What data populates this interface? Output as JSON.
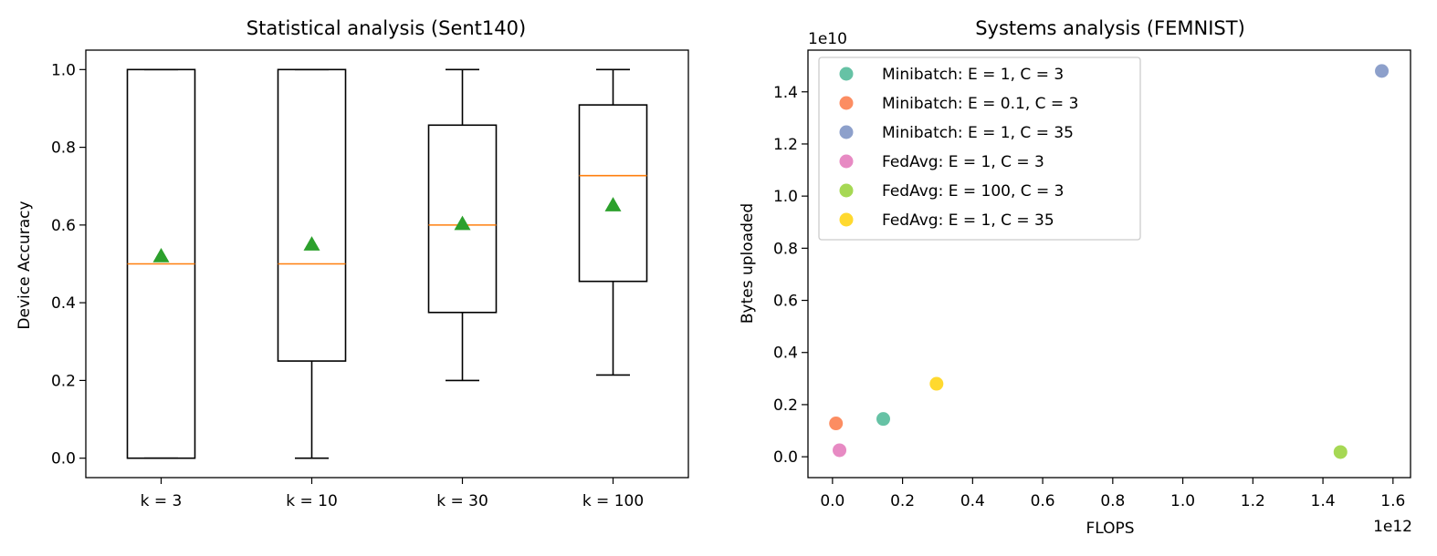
{
  "chart_data": [
    {
      "type": "box",
      "title": "Statistical analysis (Sent140)",
      "xlabel": "",
      "ylabel": "Device Accuracy",
      "ylim": [
        -0.05,
        1.05
      ],
      "yticks": [
        0.0,
        0.2,
        0.4,
        0.6,
        0.8,
        1.0
      ],
      "ytick_labels": [
        "0.0",
        "0.2",
        "0.4",
        "0.6",
        "0.8",
        "1.0"
      ],
      "categories": [
        "k = 3",
        "k = 10",
        "k = 30",
        "k = 100"
      ],
      "boxes": [
        {
          "whisker_low": 0.0,
          "q1": 0.0,
          "median": 0.5,
          "q3": 1.0,
          "whisker_high": 1.0,
          "mean": 0.52
        },
        {
          "whisker_low": 0.0,
          "q1": 0.25,
          "median": 0.5,
          "q3": 1.0,
          "whisker_high": 1.0,
          "mean": 0.55
        },
        {
          "whisker_low": 0.2,
          "q1": 0.375,
          "median": 0.6,
          "q3": 0.857,
          "whisker_high": 1.0,
          "mean": 0.603
        },
        {
          "whisker_low": 0.214,
          "q1": 0.455,
          "median": 0.727,
          "q3": 0.909,
          "whisker_high": 1.0,
          "mean": 0.651
        }
      ],
      "colors": {
        "box": "#000000",
        "median": "#ff7f0e",
        "mean": "#2ca02c"
      },
      "grid": false
    },
    {
      "type": "scatter",
      "title": "Systems analysis (FEMNIST)",
      "xlabel": "FLOPS",
      "ylabel": "Bytes uploaded",
      "x_scale_label": "1e12",
      "y_scale_label": "1e10",
      "xlim": [
        -0.07,
        1.65
      ],
      "ylim": [
        -0.08,
        1.56
      ],
      "xticks": [
        0.0,
        0.2,
        0.4,
        0.6,
        0.8,
        1.0,
        1.2,
        1.4,
        1.6
      ],
      "xtick_labels": [
        "0.0",
        "0.2",
        "0.4",
        "0.6",
        "0.8",
        "1.0",
        "1.2",
        "1.4",
        "1.6"
      ],
      "yticks": [
        0.0,
        0.2,
        0.4,
        0.6,
        0.8,
        1.0,
        1.2,
        1.4
      ],
      "ytick_labels": [
        "0.0",
        "0.2",
        "0.4",
        "0.6",
        "0.8",
        "1.0",
        "1.2",
        "1.4"
      ],
      "legend_position": "top-left",
      "series": [
        {
          "name": "Minibatch: E = 1, C = 3",
          "color": "#66c2a5",
          "x": 0.145,
          "y": 0.145
        },
        {
          "name": "Minibatch: E = 0.1, C = 3",
          "color": "#fc8d62",
          "x": 0.01,
          "y": 0.128
        },
        {
          "name": "Minibatch: E = 1, C = 35",
          "color": "#8da0cb",
          "x": 1.568,
          "y": 1.48
        },
        {
          "name": "FedAvg: E = 1, C = 3",
          "color": "#e78ac3",
          "x": 0.02,
          "y": 0.025
        },
        {
          "name": "FedAvg: E = 100, C = 3",
          "color": "#a6d854",
          "x": 1.45,
          "y": 0.018
        },
        {
          "name": "FedAvg: E = 1, C = 35",
          "color": "#ffd92f",
          "x": 0.297,
          "y": 0.28
        }
      ],
      "grid": false
    }
  ]
}
